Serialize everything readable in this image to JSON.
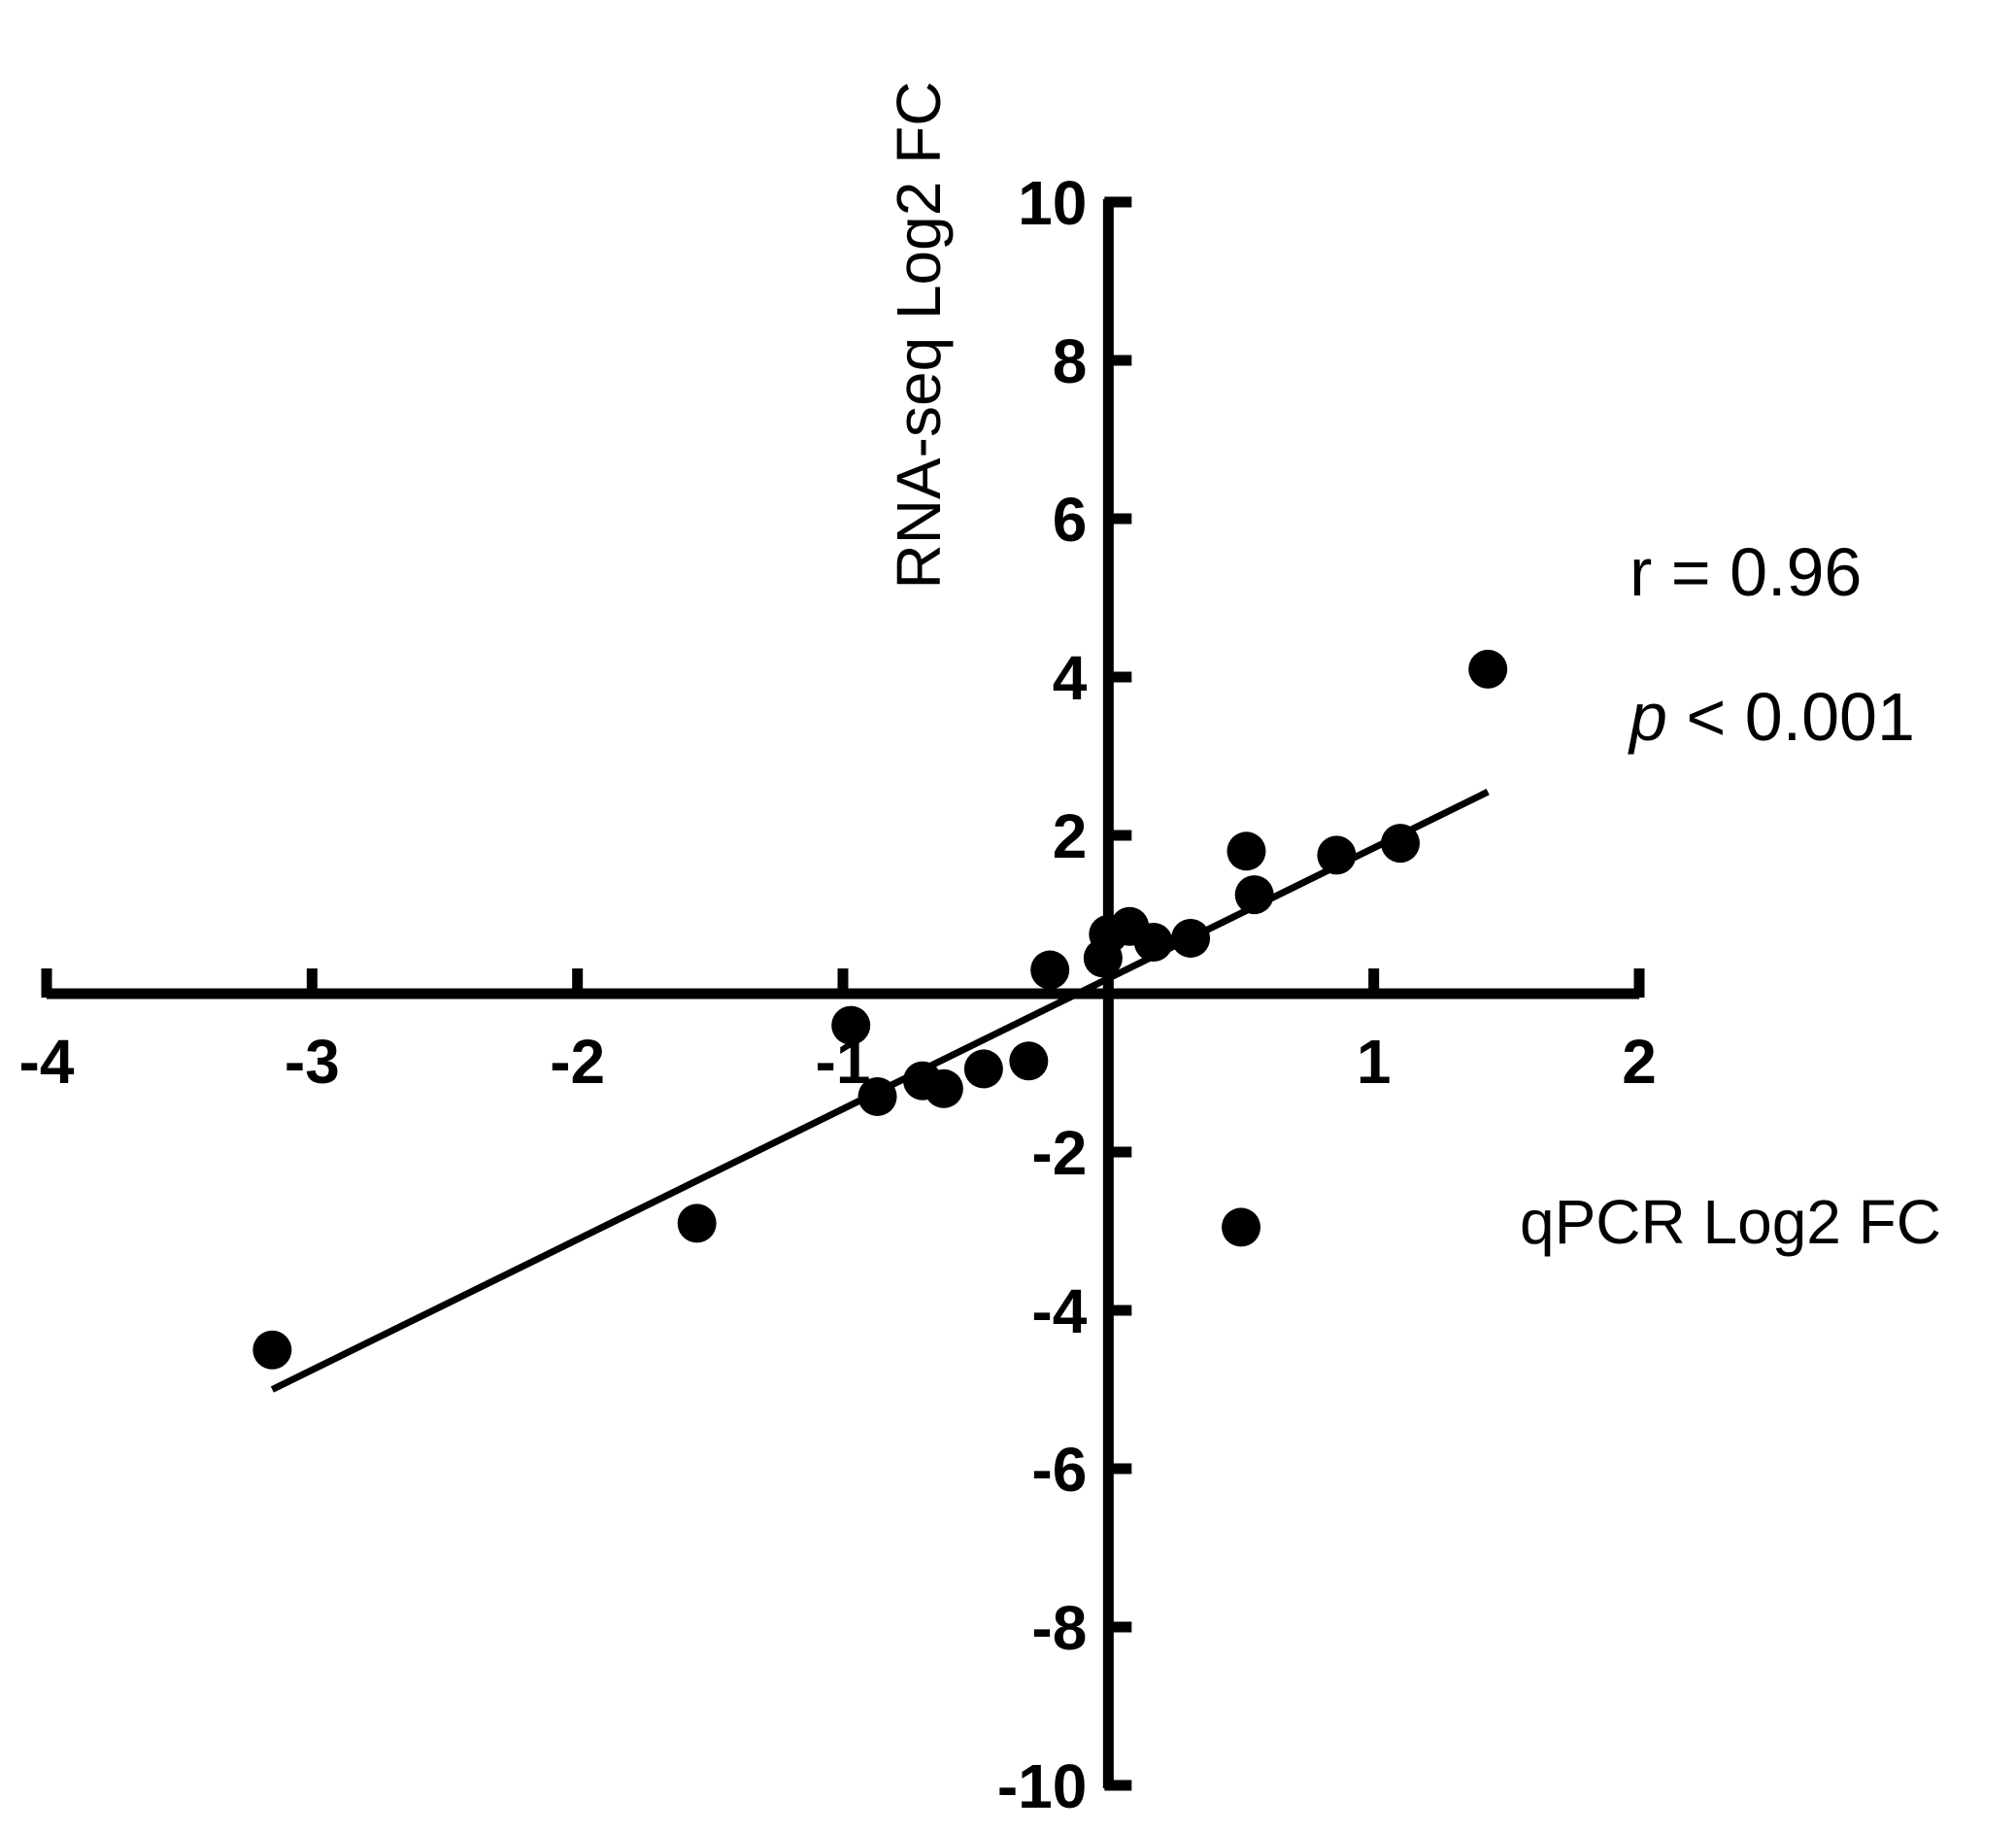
{
  "chart_data": {
    "type": "scatter",
    "xlabel": "qPCR Log2 FC",
    "ylabel": "RNA-seq Log2 FC",
    "xlim": [
      -4,
      2
    ],
    "ylim": [
      -10,
      10
    ],
    "x_ticks": [
      -4,
      -3,
      -2,
      -1,
      1,
      2
    ],
    "y_ticks": [
      10,
      8,
      6,
      4,
      2,
      -2,
      -4,
      -6,
      -8,
      -10
    ],
    "grid": false,
    "series": [
      {
        "points": [
          {
            "x": -3.15,
            "y": -4.5
          },
          {
            "x": -1.55,
            "y": -2.9
          },
          {
            "x": -0.97,
            "y": -0.4
          },
          {
            "x": -0.87,
            "y": -1.3
          },
          {
            "x": -0.7,
            "y": -1.1
          },
          {
            "x": -0.62,
            "y": -1.2
          },
          {
            "x": -0.47,
            "y": -0.95
          },
          {
            "x": -0.3,
            "y": -0.85
          },
          {
            "x": -0.22,
            "y": 0.3
          },
          {
            "x": -0.02,
            "y": 0.45
          },
          {
            "x": 0.0,
            "y": 0.75
          },
          {
            "x": 0.08,
            "y": 0.85
          },
          {
            "x": 0.17,
            "y": 0.65
          },
          {
            "x": 0.31,
            "y": 0.7
          },
          {
            "x": 0.52,
            "y": 1.8
          },
          {
            "x": 0.55,
            "y": 1.25
          },
          {
            "x": 0.5,
            "y": -2.95
          },
          {
            "x": 0.86,
            "y": 1.75
          },
          {
            "x": 1.1,
            "y": 1.9
          },
          {
            "x": 1.43,
            "y": 4.1
          }
        ]
      }
    ],
    "trendline": {
      "x": [
        -3.15,
        1.43
      ],
      "y": [
        -5.0,
        2.55
      ]
    },
    "annotations": {
      "r_text": "r = 0.96",
      "p_symbol": "p",
      "p_rest": " < 0.001"
    }
  }
}
